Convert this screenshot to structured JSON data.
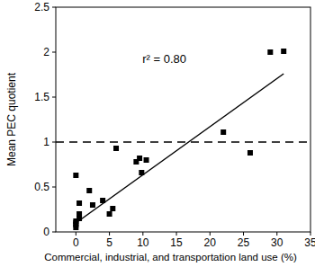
{
  "chart_data": {
    "type": "scatter",
    "x_label": "Commercial, industrial, and transportation land use (%)",
    "y_label": "Mean PEC quotient",
    "annotation": "r² = 0.80",
    "xlim": [
      -3,
      35
    ],
    "xticks": [
      0,
      5,
      10,
      15,
      20,
      25,
      30,
      35
    ],
    "ylim": [
      0,
      2.5
    ],
    "yticks": [
      0,
      0.5,
      1,
      1.5,
      2,
      2.5
    ],
    "grid": false,
    "series": [
      {
        "type": "scatter",
        "marker": "square",
        "color": "#000000",
        "x": [
          0,
          0,
          0,
          0,
          0,
          0.5,
          0.5,
          0.5,
          2,
          2.5,
          4,
          5,
          5.5,
          6,
          9,
          9.5,
          9.8,
          10.5,
          22,
          26,
          29,
          31
        ],
        "values": [
          0.05,
          0.08,
          0.1,
          0.12,
          0.63,
          0.15,
          0.2,
          0.32,
          0.46,
          0.3,
          0.35,
          0.2,
          0.26,
          0.93,
          0.78,
          0.82,
          0.66,
          0.8,
          1.11,
          0.88,
          2.0,
          2.01
        ]
      },
      {
        "type": "line",
        "line_style": "solid",
        "color": "#000000",
        "x": [
          0,
          31
        ],
        "values": [
          0.1,
          1.76
        ]
      },
      {
        "type": "line",
        "line_style": "dashed",
        "color": "#000000",
        "x": [
          -3,
          35
        ],
        "values": [
          1,
          1
        ]
      }
    ]
  }
}
